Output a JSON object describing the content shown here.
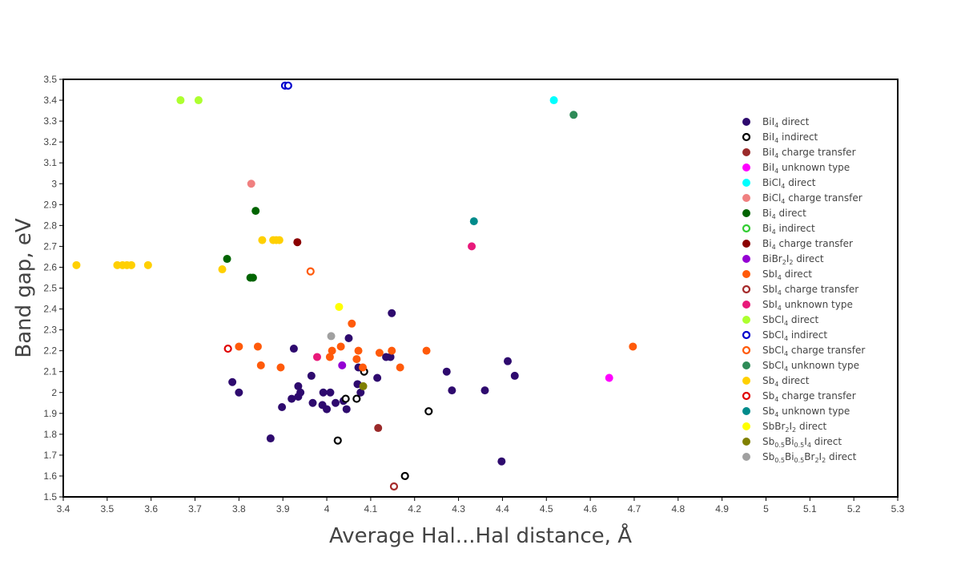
{
  "chart_data": {
    "type": "scatter",
    "title": "",
    "xlabel": "Average Hal...Hal distance, Å",
    "ylabel": "Band gap, eV",
    "xlim": [
      3.4,
      5.3
    ],
    "ylim": [
      1.5,
      3.5
    ],
    "xticks": [
      3.4,
      3.5,
      3.6,
      3.7,
      3.8,
      3.9,
      4,
      4.1,
      4.2,
      4.3,
      4.4,
      4.5,
      4.6,
      4.7,
      4.8,
      4.9,
      5,
      5.1,
      5.2,
      5.3
    ],
    "yticks": [
      1.5,
      1.6,
      1.7,
      1.8,
      1.9,
      2,
      2.1,
      2.2,
      2.3,
      2.4,
      2.5,
      2.6,
      2.7,
      2.8,
      2.9,
      3,
      3.1,
      3.2,
      3.3,
      3.4,
      3.5
    ],
    "xtick_labels": [
      "3.4",
      "3.5",
      "3.6",
      "3.7",
      "3.8",
      "3.9",
      "4",
      "4.1",
      "4.2",
      "4.3",
      "4.4",
      "4.5",
      "4.6",
      "4.7",
      "4.8",
      "4.9",
      "5",
      "5.1",
      "5.2",
      "5.3"
    ],
    "ytick_labels": [
      "1.5",
      "1.6",
      "1.7",
      "1.8",
      "1.9",
      "2",
      "2.1",
      "2.2",
      "2.3",
      "2.4",
      "2.5",
      "2.6",
      "2.7",
      "2.8",
      "2.9",
      "3",
      "3.1",
      "3.2",
      "3.3",
      "3.4",
      "3.5"
    ],
    "grid": false,
    "legend_position": "right",
    "series": [
      {
        "label": [
          [
            "BiI",
            "4",
            " direct"
          ]
        ],
        "color": "#2e0a6e",
        "marker": "filled",
        "points": [
          [
            3.785,
            2.05
          ],
          [
            3.8,
            2.0
          ],
          [
            3.872,
            1.78
          ],
          [
            3.898,
            1.93
          ],
          [
            3.92,
            1.97
          ],
          [
            3.925,
            2.21
          ],
          [
            3.935,
            2.03
          ],
          [
            3.935,
            1.98
          ],
          [
            3.94,
            2.0
          ],
          [
            3.965,
            2.08
          ],
          [
            3.968,
            1.95
          ],
          [
            3.99,
            1.94
          ],
          [
            3.992,
            2.0
          ],
          [
            4.0,
            1.92
          ],
          [
            4.008,
            2.0
          ],
          [
            4.02,
            1.95
          ],
          [
            4.038,
            1.96
          ],
          [
            4.045,
            1.92
          ],
          [
            4.05,
            2.26
          ],
          [
            4.07,
            2.04
          ],
          [
            4.072,
            2.12
          ],
          [
            4.077,
            2.0
          ],
          [
            4.115,
            2.07
          ],
          [
            4.135,
            2.17
          ],
          [
            4.145,
            2.17
          ],
          [
            4.148,
            2.38
          ],
          [
            4.273,
            2.1
          ],
          [
            4.285,
            2.01
          ],
          [
            4.36,
            2.01
          ],
          [
            4.398,
            1.67
          ],
          [
            4.412,
            2.15
          ],
          [
            4.428,
            2.08
          ]
        ]
      },
      {
        "label": [
          [
            "BiI",
            "4",
            " indirect"
          ]
        ],
        "color": "#000000",
        "marker": "open",
        "points": [
          [
            4.025,
            1.77
          ],
          [
            4.043,
            1.97
          ],
          [
            4.068,
            1.97
          ],
          [
            4.085,
            2.1
          ],
          [
            4.178,
            1.6
          ],
          [
            4.232,
            1.91
          ]
        ]
      },
      {
        "label": [
          [
            "BiI",
            "4",
            " charge transfer"
          ]
        ],
        "color": "#9a2a2a",
        "marker": "filled",
        "points": [
          [
            4.117,
            1.83
          ]
        ]
      },
      {
        "label": [
          [
            "BiI",
            "4",
            " unknown type"
          ]
        ],
        "color": "#ff00ff",
        "marker": "filled",
        "points": [
          [
            4.643,
            2.07
          ]
        ]
      },
      {
        "label": [
          [
            "BiCl",
            "4",
            " direct"
          ]
        ],
        "color": "#00ffff",
        "marker": "filled",
        "points": [
          [
            4.517,
            3.4
          ]
        ]
      },
      {
        "label": [
          [
            "BiCl",
            "4",
            " charge transfer"
          ]
        ],
        "color": "#f08080",
        "marker": "filled",
        "points": [
          [
            3.828,
            3.0
          ]
        ]
      },
      {
        "label": [
          [
            "Bi",
            "4",
            " direct"
          ]
        ],
        "color": "#006400",
        "marker": "filled",
        "points": [
          [
            3.773,
            2.64
          ],
          [
            3.826,
            2.55
          ],
          [
            3.832,
            2.55
          ],
          [
            3.838,
            2.87
          ]
        ]
      },
      {
        "label": [
          [
            "Bi",
            "4",
            " indirect"
          ]
        ],
        "color": "#32cd32",
        "marker": "open",
        "points": []
      },
      {
        "label": [
          [
            "Bi",
            "4",
            " charge transfer"
          ]
        ],
        "color": "#8b0000",
        "marker": "filled",
        "points": [
          [
            3.933,
            2.72
          ]
        ]
      },
      {
        "label": [
          [
            "BiBr",
            "2",
            "I",
            "2",
            " direct"
          ]
        ],
        "color": "#9400d3",
        "marker": "filled",
        "points": [
          [
            4.035,
            2.13
          ]
        ]
      },
      {
        "label": [
          [
            "SbI",
            "4",
            " direct"
          ]
        ],
        "color": "#ff5a0a",
        "marker": "filled",
        "points": [
          [
            3.8,
            2.22
          ],
          [
            3.843,
            2.22
          ],
          [
            3.85,
            2.13
          ],
          [
            3.895,
            2.12
          ],
          [
            4.007,
            2.17
          ],
          [
            4.012,
            2.2
          ],
          [
            4.032,
            2.22
          ],
          [
            4.057,
            2.33
          ],
          [
            4.068,
            2.16
          ],
          [
            4.072,
            2.2
          ],
          [
            4.082,
            2.12
          ],
          [
            4.12,
            2.19
          ],
          [
            4.148,
            2.2
          ],
          [
            4.167,
            2.12
          ],
          [
            4.227,
            2.2
          ],
          [
            4.697,
            2.22
          ]
        ]
      },
      {
        "label": [
          [
            "SbI",
            "4",
            " charge transfer"
          ]
        ],
        "color": "#a52a2a",
        "marker": "open",
        "points": [
          [
            4.153,
            1.55
          ]
        ]
      },
      {
        "label": [
          [
            "SbI",
            "4",
            " unknown type"
          ]
        ],
        "color": "#e8197a",
        "marker": "filled",
        "points": [
          [
            3.978,
            2.17
          ],
          [
            4.33,
            2.7
          ]
        ]
      },
      {
        "label": [
          [
            "SbCl",
            "4",
            " direct"
          ]
        ],
        "color": "#adff2f",
        "marker": "filled",
        "points": [
          [
            3.667,
            3.4
          ],
          [
            3.708,
            3.4
          ]
        ]
      },
      {
        "label": [
          [
            "SbCl",
            "4",
            " indirect"
          ]
        ],
        "color": "#0000cd",
        "marker": "open",
        "points": [
          [
            3.905,
            3.47
          ],
          [
            3.912,
            3.47
          ]
        ]
      },
      {
        "label": [
          [
            "SbCl",
            "4",
            " charge transfer"
          ]
        ],
        "color": "#ff5a0a",
        "marker": "open",
        "points": [
          [
            3.963,
            2.58
          ]
        ]
      },
      {
        "label": [
          [
            "SbCl",
            "4",
            " unknown type"
          ]
        ],
        "color": "#2e8b57",
        "marker": "filled",
        "points": [
          [
            4.562,
            3.33
          ]
        ]
      },
      {
        "label": [
          [
            "Sb",
            "4",
            " direct"
          ]
        ],
        "color": "#ffd000",
        "marker": "filled",
        "points": [
          [
            3.43,
            2.61
          ],
          [
            3.523,
            2.61
          ],
          [
            3.535,
            2.61
          ],
          [
            3.545,
            2.61
          ],
          [
            3.555,
            2.61
          ],
          [
            3.593,
            2.61
          ],
          [
            3.762,
            2.59
          ],
          [
            3.853,
            2.73
          ],
          [
            3.878,
            2.73
          ],
          [
            3.885,
            2.73
          ],
          [
            3.892,
            2.73
          ]
        ]
      },
      {
        "label": [
          [
            "Sb",
            "4",
            " charge transfer"
          ]
        ],
        "color": "#e00000",
        "marker": "open",
        "points": [
          [
            3.775,
            2.21
          ]
        ]
      },
      {
        "label": [
          [
            "Sb",
            "4",
            " unknown type"
          ]
        ],
        "color": "#008b8b",
        "marker": "filled",
        "points": [
          [
            4.335,
            2.82
          ]
        ]
      },
      {
        "label": [
          [
            "SbBr",
            "2",
            "I",
            "2",
            " direct"
          ]
        ],
        "color": "#ffff00",
        "marker": "filled",
        "points": [
          [
            4.028,
            2.41
          ]
        ]
      },
      {
        "label": [
          [
            "Sb",
            "0.5",
            "Bi",
            "0.5",
            "I",
            "4",
            " direct"
          ]
        ],
        "color": "#808000",
        "marker": "filled",
        "points": [
          [
            4.083,
            2.03
          ]
        ]
      },
      {
        "label": [
          [
            "Sb",
            "0.5",
            "Bi",
            "0.5",
            "Br",
            "2",
            "I",
            "2",
            " direct"
          ]
        ],
        "color": "#a0a0a0",
        "marker": "filled",
        "points": [
          [
            4.01,
            2.27
          ]
        ]
      }
    ]
  }
}
